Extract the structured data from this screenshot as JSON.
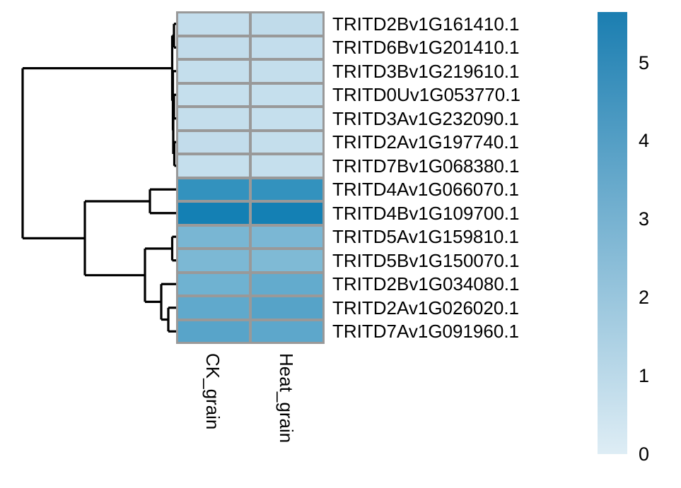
{
  "figure": {
    "background_color": "#ffffff",
    "line_color": "#000000",
    "grid_line_color": "#999999"
  },
  "chart_data": {
    "type": "heatmap",
    "title": "",
    "description": "Clustered gene-expression heatmap (pheatmap style) with row dendrogram on the left and continuous color legend on the right",
    "columns": [
      "CK_grain",
      "Heat_grain"
    ],
    "rows": [
      "TRITD2Bv1G161410.1",
      "TRITD6Bv1G201410.1",
      "TRITD3Bv1G219610.1",
      "TRITD0Uv1G053770.1",
      "TRITD3Av1G232090.1",
      "TRITD2Av1G197740.1",
      "TRITD7Bv1G068380.1",
      "TRITD4Av1G066070.1",
      "TRITD4Bv1G109700.1",
      "TRITD5Av1G159810.1",
      "TRITD5Bv1G150070.1",
      "TRITD2Bv1G034080.1",
      "TRITD2Av1G026020.1",
      "TRITD7Av1G091960.1"
    ],
    "values": [
      [
        0.8,
        0.8
      ],
      [
        0.8,
        0.8
      ],
      [
        0.8,
        0.8
      ],
      [
        0.7,
        0.7
      ],
      [
        0.8,
        0.7
      ],
      [
        0.8,
        0.8
      ],
      [
        0.7,
        0.7
      ],
      [
        4.8,
        4.8
      ],
      [
        5.5,
        5.5
      ],
      [
        2.9,
        2.9
      ],
      [
        2.8,
        2.8
      ],
      [
        3.2,
        3.5
      ],
      [
        3.5,
        3.8
      ],
      [
        3.7,
        3.6
      ]
    ],
    "cell_colors": [
      [
        "#C3DDEC",
        "#C0DBEA"
      ],
      [
        "#C2DCEB",
        "#C3DDEC"
      ],
      [
        "#C4DEEC",
        "#C4DEEC"
      ],
      [
        "#C5DFED",
        "#C5DFED"
      ],
      [
        "#C4DEEC",
        "#C5DFED"
      ],
      [
        "#C2DCEB",
        "#C4DEEC"
      ],
      [
        "#C5DFED",
        "#C5DFED"
      ],
      [
        "#3392BE",
        "#3392BE"
      ],
      [
        "#1480B4",
        "#1480B4"
      ],
      [
        "#79B6D3",
        "#7BB7D4"
      ],
      [
        "#7CB8D4",
        "#7FBAD5"
      ],
      [
        "#6FB2D1",
        "#63ABCD"
      ],
      [
        "#60A9CC",
        "#56A3C8"
      ],
      [
        "#58A4C9",
        "#5DA7CB"
      ]
    ],
    "colorbar": {
      "min": 0,
      "max": 5.645,
      "ticks": [
        5,
        4,
        3,
        2,
        1,
        0
      ],
      "top_color": "#1B7EB1",
      "bottom_color": "#DEEDF5"
    },
    "row_dendrogram": {
      "side": "left",
      "clusters_note": "Top cluster: rows 1-7 (all joins near zero distance). Bottom cluster: ((8,9),(((10,11),(12,(13,14)))))",
      "segments": [
        [
          246,
          33.75,
          246,
          67.25
        ],
        [
          246,
          33.75,
          249,
          33.75
        ],
        [
          246,
          67.25,
          249,
          67.25
        ],
        [
          246,
          134.25,
          246,
          167.75
        ],
        [
          246,
          134.25,
          249,
          134.25
        ],
        [
          246,
          167.75,
          249,
          167.75
        ],
        [
          246.5,
          201.25,
          246.5,
          234.75
        ],
        [
          246.5,
          201.25,
          249,
          201.25
        ],
        [
          246.5,
          234.75,
          249,
          234.75
        ],
        [
          245,
          151,
          245,
          218
        ],
        [
          245,
          151,
          246,
          151
        ],
        [
          245,
          218,
          246.5,
          218
        ],
        [
          244.5,
          100.75,
          244.5,
          184.5
        ],
        [
          244.5,
          100.75,
          249,
          100.75
        ],
        [
          244.5,
          184.5,
          245,
          184.5
        ],
        [
          243.5,
          50.5,
          243.5,
          142.6
        ],
        [
          243.5,
          50.5,
          246,
          50.5
        ],
        [
          243.5,
          142.6,
          244.5,
          142.6
        ],
        [
          212,
          268.25,
          212,
          301.75
        ],
        [
          212,
          268.25,
          249,
          268.25
        ],
        [
          212,
          301.75,
          249,
          301.75
        ],
        [
          243.5,
          335.25,
          243.5,
          368.75
        ],
        [
          243.5,
          335.25,
          249,
          335.25
        ],
        [
          243.5,
          368.75,
          249,
          368.75
        ],
        [
          238,
          435.75,
          238,
          469.25
        ],
        [
          238,
          435.75,
          249,
          435.75
        ],
        [
          238,
          469.25,
          249,
          469.25
        ],
        [
          228,
          402.25,
          228,
          452.5
        ],
        [
          228,
          402.25,
          249,
          402.25
        ],
        [
          228,
          452.5,
          238,
          452.5
        ],
        [
          205,
          352,
          205,
          427.4
        ],
        [
          205,
          352,
          243.5,
          352
        ],
        [
          205,
          427.4,
          228,
          427.4
        ],
        [
          120,
          285,
          120,
          389.7
        ],
        [
          120,
          285,
          212,
          285
        ],
        [
          120,
          389.7,
          205,
          389.7
        ],
        [
          32,
          96.6,
          32,
          337.35
        ],
        [
          32,
          96.6,
          243.5,
          96.6
        ],
        [
          32,
          337.35,
          120,
          337.35
        ]
      ]
    }
  }
}
